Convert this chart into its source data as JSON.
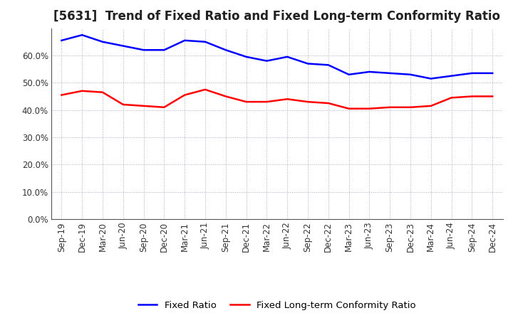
{
  "title": "[5631]  Trend of Fixed Ratio and Fixed Long-term Conformity Ratio",
  "x_labels": [
    "Sep-19",
    "Dec-19",
    "Mar-20",
    "Jun-20",
    "Sep-20",
    "Dec-20",
    "Mar-21",
    "Jun-21",
    "Sep-21",
    "Dec-21",
    "Mar-22",
    "Jun-22",
    "Sep-22",
    "Dec-22",
    "Mar-23",
    "Jun-23",
    "Sep-23",
    "Dec-23",
    "Mar-24",
    "Jun-24",
    "Sep-24",
    "Dec-24"
  ],
  "fixed_ratio": [
    65.5,
    67.5,
    65.0,
    63.5,
    62.0,
    62.0,
    65.5,
    65.0,
    62.0,
    59.5,
    58.0,
    59.5,
    57.0,
    56.5,
    53.0,
    54.0,
    53.5,
    53.0,
    51.5,
    52.5,
    53.5,
    53.5
  ],
  "fixed_lt_ratio": [
    45.5,
    47.0,
    46.5,
    42.0,
    41.5,
    41.0,
    45.5,
    47.5,
    45.0,
    43.0,
    43.0,
    44.0,
    43.0,
    42.5,
    40.5,
    40.5,
    41.0,
    41.0,
    41.5,
    44.5,
    45.0,
    45.0
  ],
  "fixed_ratio_color": "#0000FF",
  "fixed_lt_ratio_color": "#FF0000",
  "ylim": [
    0,
    70
  ],
  "yticks": [
    0,
    10,
    20,
    30,
    40,
    50,
    60
  ],
  "ytick_labels": [
    "0.0%",
    "10.0%",
    "20.0%",
    "30.0%",
    "40.0%",
    "50.0%",
    "60.0%"
  ],
  "legend_fixed_ratio": "Fixed Ratio",
  "legend_fixed_lt_ratio": "Fixed Long-term Conformity Ratio",
  "background_color": "#FFFFFF",
  "grid_color": "#AAAACC",
  "title_fontsize": 12,
  "tick_fontsize": 8.5,
  "legend_fontsize": 9.5
}
